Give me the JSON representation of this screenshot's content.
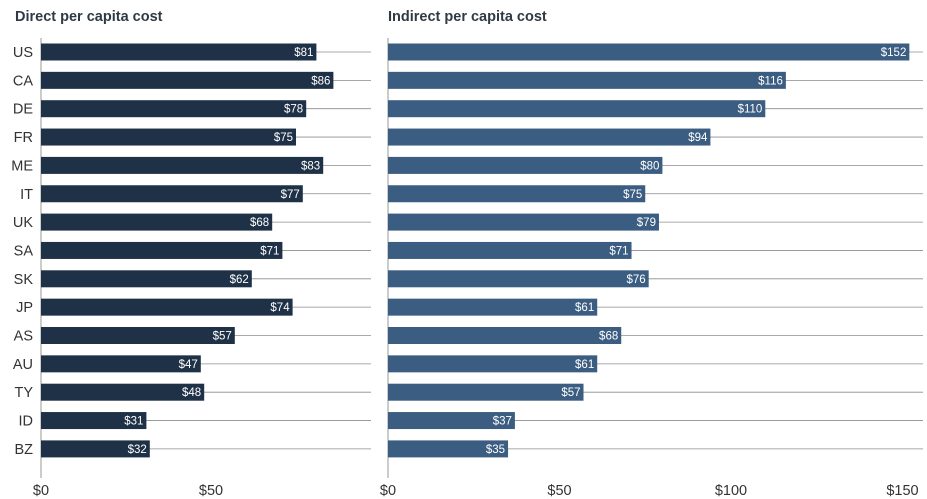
{
  "chart_data": [
    {
      "type": "bar",
      "orientation": "horizontal",
      "title": "Direct per capita cost",
      "categories": [
        "US",
        "CA",
        "DE",
        "FR",
        "ME",
        "IT",
        "UK",
        "SA",
        "SK",
        "JP",
        "AS",
        "AU",
        "TY",
        "ID",
        "BZ"
      ],
      "values": [
        81,
        86,
        78,
        75,
        83,
        77,
        68,
        71,
        62,
        74,
        57,
        47,
        48,
        31,
        32
      ],
      "value_labels": [
        "$81",
        "$86",
        "$78",
        "$75",
        "$83",
        "$77",
        "$68",
        "$71",
        "$62",
        "$74",
        "$57",
        "$47",
        "$48",
        "$31",
        "$32"
      ],
      "xticks": [
        0,
        50
      ],
      "xtick_labels": [
        "$0",
        "$50"
      ],
      "xlim": [
        0,
        100
      ],
      "gridlines": "horizontal per category",
      "color": "#1f3147"
    },
    {
      "type": "bar",
      "orientation": "horizontal",
      "title": "Indirect per capita cost",
      "categories": [
        "US",
        "CA",
        "DE",
        "FR",
        "ME",
        "IT",
        "UK",
        "SA",
        "SK",
        "JP",
        "AS",
        "AU",
        "TY",
        "ID",
        "BZ"
      ],
      "values": [
        152,
        116,
        110,
        94,
        80,
        75,
        79,
        71,
        76,
        61,
        68,
        61,
        57,
        37,
        35
      ],
      "value_labels": [
        "$152",
        "$116",
        "$110",
        "$94",
        "$80",
        "$75",
        "$79",
        "$71",
        "$76",
        "$61",
        "$68",
        "$61",
        "$57",
        "$37",
        "$35"
      ],
      "xticks": [
        0,
        50,
        100,
        150
      ],
      "xtick_labels": [
        "$0",
        "$50",
        "$100",
        "$150"
      ],
      "xlim": [
        0,
        157
      ],
      "gridlines": "horizontal per category",
      "color": "#3b5d82"
    }
  ]
}
